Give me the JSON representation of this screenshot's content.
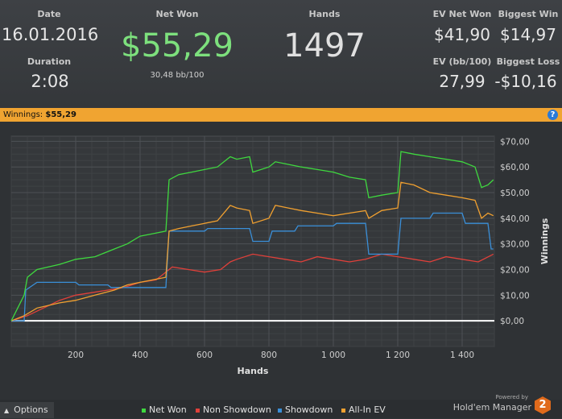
{
  "stats": {
    "date_label": "Date",
    "date_value": "16.01.2016",
    "duration_label": "Duration",
    "duration_value": "2:08",
    "net_won_label": "Net Won",
    "net_won_value": "$55,29",
    "net_won_sub": "30,48 bb/100",
    "hands_label": "Hands",
    "hands_value": "1497",
    "ev_net_won_label": "EV Net Won",
    "ev_net_won_value": "$41,90",
    "biggest_win_label": "Biggest Win",
    "biggest_win_value": "$14,97",
    "ev_bb_label": "EV (bb/100)",
    "ev_bb_value": "27,99",
    "biggest_loss_label": "Biggest Loss",
    "biggest_loss_value": "-$10,16"
  },
  "bar": {
    "winnings_label": "Winnings:",
    "winnings_value": "$55,29",
    "help_icon": "?"
  },
  "footer": {
    "options_label": "Options",
    "legend": [
      {
        "label": "Net Won",
        "color": "#3fd83f"
      },
      {
        "label": "Non Showdown",
        "color": "#e0403a"
      },
      {
        "label": "Showdown",
        "color": "#3a8fd8"
      },
      {
        "label": "All-In EV",
        "color": "#f0a030"
      }
    ],
    "powered_by": "Powered by",
    "brand": "Hold'em Manager",
    "brand_logo": "2"
  },
  "chart_data": {
    "type": "line",
    "xlabel": "Hands",
    "ylabel": "Winnings",
    "xlim": [
      0,
      1500
    ],
    "ylim": [
      -10,
      72
    ],
    "x_ticks": [
      200,
      400,
      600,
      800,
      1000,
      1200,
      1400
    ],
    "x_tick_labels": [
      "200",
      "400",
      "600",
      "800",
      "1 000",
      "1 200",
      "1 400"
    ],
    "y_ticks": [
      0,
      10,
      20,
      30,
      40,
      50,
      60,
      70
    ],
    "y_tick_labels": [
      "$0,00",
      "$10,00",
      "$20,00",
      "$30,00",
      "$40,00",
      "$50,00",
      "$60,00",
      "$70,00"
    ],
    "grid": true,
    "series": [
      {
        "name": "Net Won",
        "color": "#3fd83f",
        "points": [
          [
            0,
            0
          ],
          [
            40,
            10
          ],
          [
            50,
            17
          ],
          [
            80,
            20
          ],
          [
            150,
            22
          ],
          [
            200,
            24
          ],
          [
            260,
            25
          ],
          [
            320,
            28
          ],
          [
            360,
            30
          ],
          [
            400,
            33
          ],
          [
            440,
            34
          ],
          [
            480,
            35
          ],
          [
            490,
            55
          ],
          [
            520,
            57
          ],
          [
            560,
            58
          ],
          [
            600,
            59
          ],
          [
            640,
            60
          ],
          [
            680,
            64
          ],
          [
            700,
            63
          ],
          [
            740,
            64
          ],
          [
            750,
            58
          ],
          [
            800,
            60
          ],
          [
            820,
            62
          ],
          [
            860,
            61
          ],
          [
            900,
            60
          ],
          [
            950,
            59
          ],
          [
            1000,
            58
          ],
          [
            1050,
            56
          ],
          [
            1100,
            55
          ],
          [
            1110,
            48
          ],
          [
            1150,
            49
          ],
          [
            1200,
            50
          ],
          [
            1210,
            66
          ],
          [
            1250,
            65
          ],
          [
            1300,
            64
          ],
          [
            1350,
            63
          ],
          [
            1400,
            62
          ],
          [
            1440,
            60
          ],
          [
            1460,
            52
          ],
          [
            1480,
            53
          ],
          [
            1497,
            55
          ]
        ]
      },
      {
        "name": "Non Showdown",
        "color": "#e0403a",
        "points": [
          [
            0,
            0
          ],
          [
            50,
            2
          ],
          [
            100,
            5
          ],
          [
            150,
            8
          ],
          [
            200,
            10
          ],
          [
            250,
            11
          ],
          [
            300,
            12
          ],
          [
            350,
            13
          ],
          [
            400,
            15
          ],
          [
            450,
            16
          ],
          [
            480,
            19
          ],
          [
            500,
            21
          ],
          [
            550,
            20
          ],
          [
            600,
            19
          ],
          [
            650,
            20
          ],
          [
            680,
            23
          ],
          [
            700,
            24
          ],
          [
            750,
            26
          ],
          [
            800,
            25
          ],
          [
            850,
            24
          ],
          [
            900,
            23
          ],
          [
            950,
            25
          ],
          [
            1000,
            24
          ],
          [
            1050,
            23
          ],
          [
            1100,
            24
          ],
          [
            1150,
            26
          ],
          [
            1200,
            25
          ],
          [
            1250,
            24
          ],
          [
            1300,
            23
          ],
          [
            1350,
            25
          ],
          [
            1400,
            24
          ],
          [
            1450,
            23
          ],
          [
            1497,
            26
          ]
        ]
      },
      {
        "name": "Showdown",
        "color": "#3a8fd8",
        "points": [
          [
            0,
            0
          ],
          [
            40,
            0
          ],
          [
            45,
            12
          ],
          [
            80,
            15
          ],
          [
            200,
            15
          ],
          [
            210,
            14
          ],
          [
            300,
            14
          ],
          [
            310,
            13
          ],
          [
            480,
            13
          ],
          [
            490,
            35
          ],
          [
            600,
            35
          ],
          [
            610,
            36
          ],
          [
            740,
            36
          ],
          [
            750,
            31
          ],
          [
            800,
            31
          ],
          [
            810,
            35
          ],
          [
            880,
            35
          ],
          [
            890,
            37
          ],
          [
            1000,
            37
          ],
          [
            1010,
            38
          ],
          [
            1100,
            38
          ],
          [
            1110,
            26
          ],
          [
            1200,
            26
          ],
          [
            1210,
            40
          ],
          [
            1300,
            40
          ],
          [
            1310,
            42
          ],
          [
            1400,
            42
          ],
          [
            1410,
            38
          ],
          [
            1480,
            38
          ],
          [
            1490,
            28
          ],
          [
            1497,
            28
          ]
        ]
      },
      {
        "name": "All-In EV",
        "color": "#f0a030",
        "points": [
          [
            0,
            0
          ],
          [
            40,
            2
          ],
          [
            80,
            5
          ],
          [
            150,
            7
          ],
          [
            200,
            8
          ],
          [
            260,
            10
          ],
          [
            320,
            12
          ],
          [
            360,
            14
          ],
          [
            400,
            15
          ],
          [
            440,
            16
          ],
          [
            480,
            17
          ],
          [
            490,
            35
          ],
          [
            520,
            36
          ],
          [
            560,
            37
          ],
          [
            600,
            38
          ],
          [
            640,
            39
          ],
          [
            680,
            45
          ],
          [
            700,
            44
          ],
          [
            740,
            43
          ],
          [
            750,
            38
          ],
          [
            800,
            40
          ],
          [
            820,
            45
          ],
          [
            860,
            44
          ],
          [
            900,
            43
          ],
          [
            950,
            42
          ],
          [
            1000,
            41
          ],
          [
            1050,
            42
          ],
          [
            1100,
            43
          ],
          [
            1110,
            40
          ],
          [
            1150,
            43
          ],
          [
            1200,
            44
          ],
          [
            1210,
            54
          ],
          [
            1250,
            53
          ],
          [
            1300,
            50
          ],
          [
            1350,
            49
          ],
          [
            1400,
            48
          ],
          [
            1440,
            47
          ],
          [
            1460,
            40
          ],
          [
            1480,
            42
          ],
          [
            1497,
            41
          ]
        ]
      }
    ]
  }
}
